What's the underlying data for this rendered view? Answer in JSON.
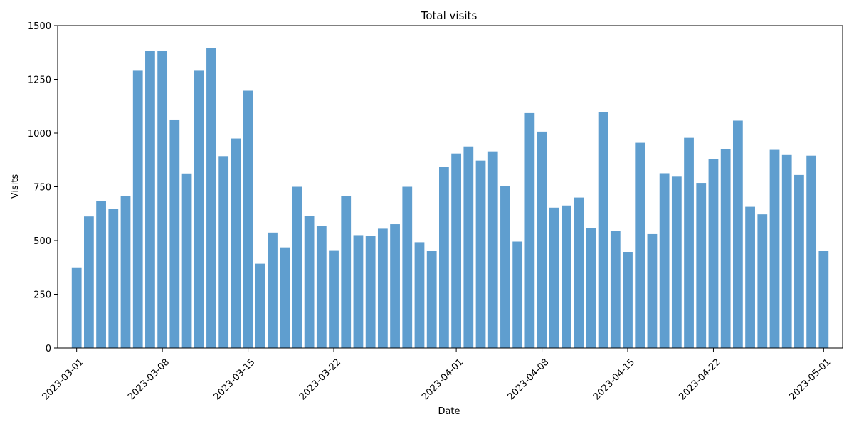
{
  "chart_data": {
    "type": "bar",
    "title": "Total visits",
    "xlabel": "Date",
    "ylabel": "Visits",
    "ylim": [
      0,
      1500
    ],
    "yticks": [
      0,
      250,
      500,
      750,
      1000,
      1250,
      1500
    ],
    "xticks": [
      "2023-03-01",
      "2023-03-08",
      "2023-03-15",
      "2023-03-22",
      "2023-04-01",
      "2023-04-08",
      "2023-04-15",
      "2023-04-22",
      "2023-05-01"
    ],
    "start_date": "2023-03-01",
    "color": "#5f9ecf",
    "grid": false,
    "categories": [
      "2023-03-01",
      "2023-03-02",
      "2023-03-03",
      "2023-03-04",
      "2023-03-05",
      "2023-03-06",
      "2023-03-07",
      "2023-03-08",
      "2023-03-09",
      "2023-03-10",
      "2023-03-11",
      "2023-03-12",
      "2023-03-13",
      "2023-03-14",
      "2023-03-15",
      "2023-03-16",
      "2023-03-17",
      "2023-03-18",
      "2023-03-19",
      "2023-03-20",
      "2023-03-21",
      "2023-03-22",
      "2023-03-23",
      "2023-03-24",
      "2023-03-25",
      "2023-03-26",
      "2023-03-27",
      "2023-03-28",
      "2023-03-29",
      "2023-03-30",
      "2023-03-31",
      "2023-04-01",
      "2023-04-02",
      "2023-04-03",
      "2023-04-04",
      "2023-04-05",
      "2023-04-06",
      "2023-04-07",
      "2023-04-08",
      "2023-04-09",
      "2023-04-10",
      "2023-04-11",
      "2023-04-12",
      "2023-04-13",
      "2023-04-14",
      "2023-04-15",
      "2023-04-16",
      "2023-04-17",
      "2023-04-18",
      "2023-04-19",
      "2023-04-20",
      "2023-04-21",
      "2023-04-22",
      "2023-04-23",
      "2023-04-24",
      "2023-04-25",
      "2023-04-26",
      "2023-04-27",
      "2023-04-28",
      "2023-04-29",
      "2023-04-30",
      "2023-05-01"
    ],
    "values": [
      375,
      612,
      683,
      648,
      706,
      1290,
      1382,
      1382,
      1063,
      812,
      1290,
      1394,
      893,
      975,
      1197,
      392,
      537,
      468,
      750,
      615,
      567,
      455,
      707,
      525,
      520,
      555,
      576,
      750,
      492,
      453,
      843,
      905,
      938,
      872,
      915,
      753,
      495,
      1093,
      1007,
      653,
      663,
      700,
      558,
      1097,
      545,
      447,
      955,
      530,
      813,
      797,
      978,
      768,
      880,
      925,
      1058,
      657,
      622,
      922,
      898,
      805,
      895,
      452
    ]
  }
}
